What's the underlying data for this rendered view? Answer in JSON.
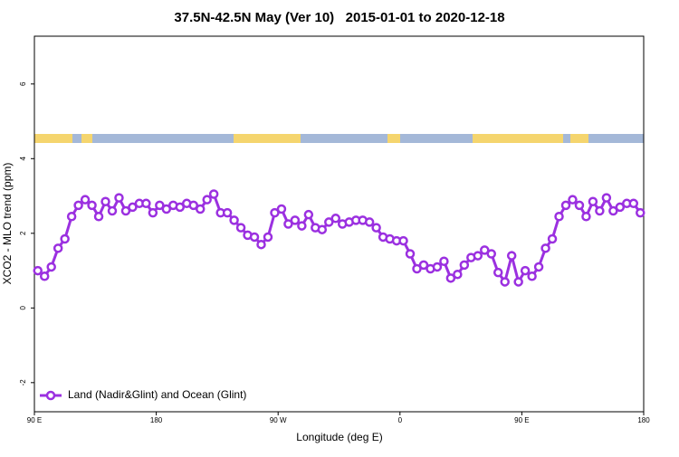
{
  "chart_data": {
    "type": "line",
    "title": "37.5N-42.5N May (Ver 10)   2015-01-01 to 2020-12-18",
    "x_label": "Longitude (deg E)",
    "y_label": "XCO2 - MLO trend (ppm)",
    "xlim": [
      90,
      540
    ],
    "ylim": [
      -2.78,
      7.28
    ],
    "xticks": [
      {
        "value": 90,
        "label": "90 E"
      },
      180,
      {
        "value": 270,
        "label": "90 W"
      },
      {
        "value": 360,
        "label": "0"
      },
      {
        "value": 450,
        "label": "90 E"
      },
      {
        "value": 540,
        "label": "180"
      }
    ],
    "yticks": [
      -2,
      0,
      2,
      4,
      6
    ],
    "legend": "bottom-left",
    "x": [
      92.5,
      97.5,
      102.5,
      107.5,
      112.5,
      117.5,
      122.5,
      127.5,
      132.5,
      137.5,
      142.5,
      147.5,
      152.5,
      157.5,
      162.5,
      167.5,
      172.5,
      177.5,
      182.5,
      187.5,
      192.5,
      197.5,
      202.5,
      207.5,
      212.5,
      217.5,
      222.5,
      227.5,
      232.5,
      237.5,
      242.5,
      247.5,
      252.5,
      257.5,
      262.5,
      267.5,
      272.5,
      277.5,
      282.5,
      287.5,
      292.5,
      297.5,
      302.5,
      307.5,
      312.5,
      317.5,
      322.5,
      327.5,
      332.5,
      337.5,
      342.5,
      347.5,
      352.5,
      357.5,
      362.5,
      367.5,
      372.5,
      377.5,
      382.5,
      387.5,
      392.5,
      397.5,
      402.5,
      407.5,
      412.5,
      417.5,
      422.5,
      427.5,
      432.5,
      437.5,
      442.5,
      447.5,
      452.5,
      457.5,
      462.5,
      467.5,
      472.5,
      477.5,
      482.5,
      487.5,
      492.5,
      497.5,
      502.5,
      507.5,
      512.5,
      517.5,
      522.5,
      527.5,
      532.5,
      537.5
    ],
    "series": [
      {
        "name": "Land (Nadir&Glint) and Ocean (Glint)",
        "color": "#9b30e0",
        "values": [
          1.0,
          0.85,
          1.1,
          1.6,
          1.85,
          2.45,
          2.75,
          2.9,
          2.75,
          2.45,
          2.85,
          2.6,
          2.95,
          2.6,
          2.7,
          2.8,
          2.8,
          2.55,
          2.75,
          2.65,
          2.75,
          2.7,
          2.8,
          2.75,
          2.65,
          2.9,
          3.05,
          2.55,
          2.55,
          2.35,
          2.15,
          1.95,
          1.9,
          1.7,
          1.9,
          2.55,
          2.65,
          2.25,
          2.35,
          2.2,
          2.5,
          2.15,
          2.1,
          2.3,
          2.4,
          2.25,
          2.3,
          2.35,
          2.35,
          2.3,
          2.15,
          1.9,
          1.85,
          1.8,
          1.8,
          1.45,
          1.05,
          1.15,
          1.05,
          1.1,
          1.25,
          0.8,
          0.9,
          1.15,
          1.35,
          1.4,
          1.55,
          1.45,
          0.95,
          0.7,
          1.4,
          0.7,
          1.0,
          0.85,
          1.1,
          1.6,
          1.85,
          2.45,
          2.75,
          2.9,
          2.75,
          2.45,
          2.85,
          2.6,
          2.95,
          2.6,
          2.7,
          2.8,
          2.8,
          2.55
        ]
      }
    ]
  }
}
